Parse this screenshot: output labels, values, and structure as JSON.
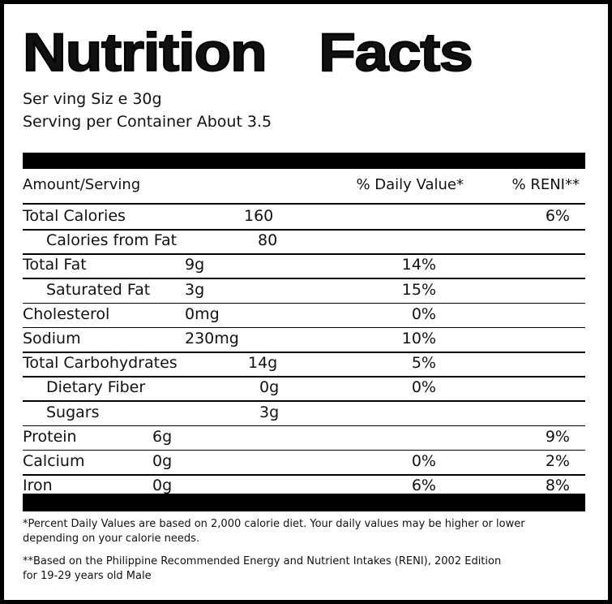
{
  "title": "Nutrition Facts",
  "serving": [
    "Ser ving Siz e 30g",
    "Serving per Container About 3.5"
  ],
  "header": {
    "amount": "Amount/Serving",
    "daily_value": "% Daily Value*",
    "reni": "% RENI**"
  },
  "rows": [
    {
      "name": "Total Calories",
      "amount": "160",
      "daily_value": null,
      "reni": "6%"
    },
    {
      "name": "Calories from Fat",
      "amount": "80",
      "daily_value": null,
      "reni": null
    },
    {
      "name": "Total Fat",
      "amount": "9g",
      "daily_value": "14%",
      "reni": null
    },
    {
      "name": "Saturated Fat",
      "amount": "3g",
      "daily_value": "15%",
      "reni": null
    },
    {
      "name": "Cholesterol",
      "amount": "0mg",
      "daily_value": "0%",
      "reni": null
    },
    {
      "name": "Sodium",
      "amount": "230mg",
      "daily_value": "10%",
      "reni": null
    },
    {
      "name": "Total Carbohydrates",
      "amount": "14g",
      "daily_value": "5%",
      "reni": null
    },
    {
      "name": "Dietary Fiber",
      "amount": "0g",
      "daily_value": "0%",
      "reni": null
    },
    {
      "name": "Sugars",
      "amount": "3g",
      "daily_value": null,
      "reni": null
    },
    {
      "name": "Protein",
      "amount": "6g",
      "daily_value": null,
      "reni": "9%"
    },
    {
      "name": "Calcium",
      "amount": "0g",
      "daily_value": "0%",
      "reni": "2%"
    },
    {
      "name": "Iron",
      "amount": "0g",
      "daily_value": "6%",
      "reni": "8%"
    }
  ],
  "footnotes": [
    [
      "*Percent Daily Values are based on 2,000 calorie diet. Your daily values may be higher or lower",
      "depending on your calorie needs."
    ],
    [
      "**Based on the Philippine Recommended Energy and Nutrient Intakes (RENI), 2002 Edition",
      "for 19-29 years old Male"
    ]
  ]
}
